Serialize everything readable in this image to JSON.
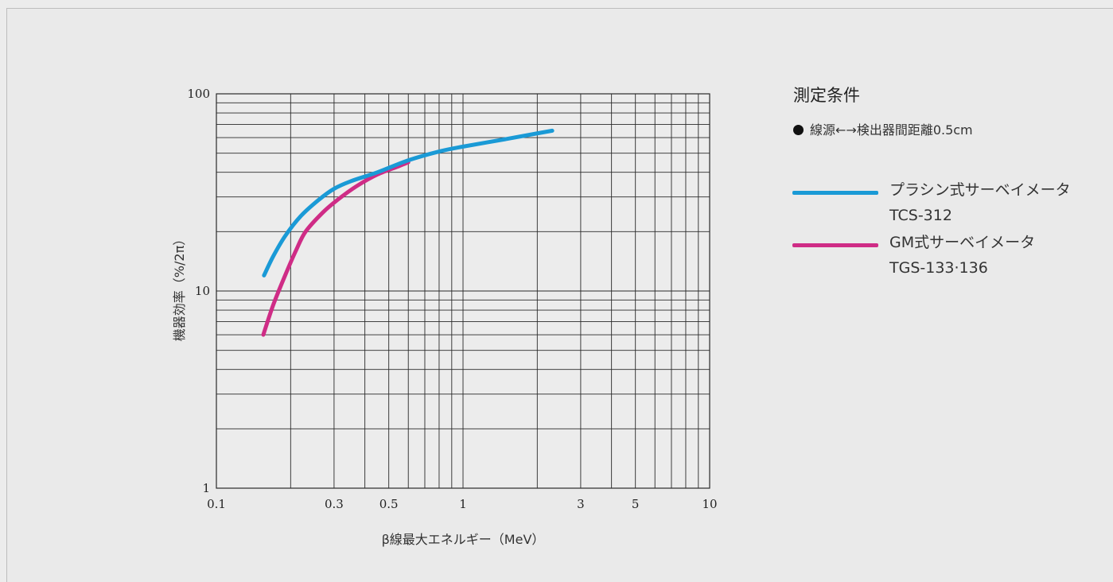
{
  "conditions": {
    "title": "測定条件",
    "item": "線源←→検出器間距離0.5cm"
  },
  "colors": {
    "tcs": "#1a9ad6",
    "tgs": "#cf2c86",
    "grid": "#2a2a2a"
  },
  "chart_data": {
    "type": "line",
    "x_scale": "log",
    "y_scale": "log",
    "xlim": [
      0.1,
      10
    ],
    "ylim": [
      1,
      100
    ],
    "xlabel": "β線最大エネルギー（MeV）",
    "ylabel": "機器効率（%/2π）",
    "x_ticks": [
      {
        "v": 0.1,
        "label": "0.1"
      },
      {
        "v": 0.3,
        "label": "0.3"
      },
      {
        "v": 0.5,
        "label": "0.5"
      },
      {
        "v": 1,
        "label": "1"
      },
      {
        "v": 3,
        "label": "3"
      },
      {
        "v": 5,
        "label": "5"
      },
      {
        "v": 10,
        "label": "10"
      }
    ],
    "y_ticks": [
      {
        "v": 1,
        "label": "1"
      },
      {
        "v": 10,
        "label": "10"
      },
      {
        "v": 100,
        "label": "100"
      }
    ],
    "grid": true,
    "legend_position": "right",
    "series": [
      {
        "name": "プラシン式サーベイメータ",
        "model": "TCS-312",
        "color_key": "tcs",
        "x": [
          0.156,
          0.17,
          0.19,
          0.22,
          0.26,
          0.3,
          0.35,
          0.45,
          0.6,
          0.8,
          1.0,
          1.5,
          2.0,
          2.3
        ],
        "y": [
          12,
          15,
          19,
          24,
          29,
          33,
          36,
          40,
          46,
          51,
          54,
          59,
          63,
          65
        ]
      },
      {
        "name": "GM式サーベイメータ",
        "model": "TGS-133·136",
        "color_key": "tgs",
        "x": [
          0.155,
          0.17,
          0.19,
          0.21,
          0.23,
          0.27,
          0.31,
          0.37,
          0.45,
          0.55,
          0.6
        ],
        "y": [
          6,
          8.5,
          12,
          16,
          20,
          25,
          29,
          34,
          39,
          43,
          45
        ]
      }
    ]
  }
}
